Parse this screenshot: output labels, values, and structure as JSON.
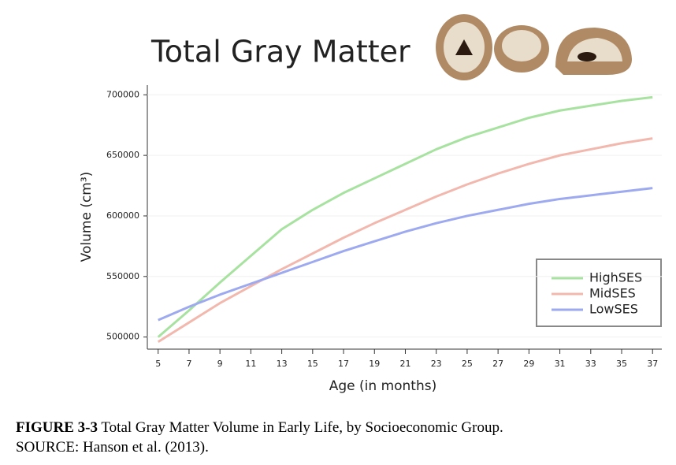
{
  "chart_data": {
    "type": "line",
    "title": "Total Gray Matter",
    "x_label": "Age (in months)",
    "y_label": "Volume (cm³)",
    "x": [
      5,
      7,
      9,
      11,
      13,
      15,
      17,
      19,
      21,
      23,
      25,
      27,
      29,
      31,
      33,
      35,
      37
    ],
    "xlim": [
      4.3,
      37.6
    ],
    "xticks": [
      5,
      7,
      9,
      11,
      13,
      15,
      17,
      19,
      21,
      23,
      25,
      27,
      29,
      31,
      33,
      35,
      37
    ],
    "ylim": [
      490000,
      708000
    ],
    "yticks": [
      500000,
      550000,
      600000,
      650000,
      700000
    ],
    "grid": true,
    "legend": "lower right",
    "series": [
      {
        "name": "HighSES",
        "color": "#a8e2a0",
        "values": [
          500000,
          522000,
          545000,
          567000,
          589000,
          605000,
          619000,
          631000,
          643000,
          655000,
          665000,
          673000,
          681000,
          687000,
          691000,
          695000,
          698000
        ]
      },
      {
        "name": "MidSES",
        "color": "#f2b8ae",
        "values": [
          496000,
          512000,
          528000,
          542000,
          556000,
          569000,
          582000,
          594000,
          605000,
          616000,
          626000,
          635000,
          643000,
          650000,
          655000,
          660000,
          664000
        ]
      },
      {
        "name": "LowSES",
        "color": "#9eaaf0",
        "values": [
          514000,
          525000,
          535000,
          544000,
          553000,
          562000,
          571000,
          579000,
          587000,
          594000,
          600000,
          605000,
          610000,
          614000,
          617000,
          620000,
          623000
        ]
      }
    ]
  },
  "caption": {
    "label": "FIGURE 3-3",
    "text": "Total Gray Matter Volume in Early Life, by Socioeconomic Group.",
    "source": "SOURCE: Hanson et al. (2013)."
  }
}
